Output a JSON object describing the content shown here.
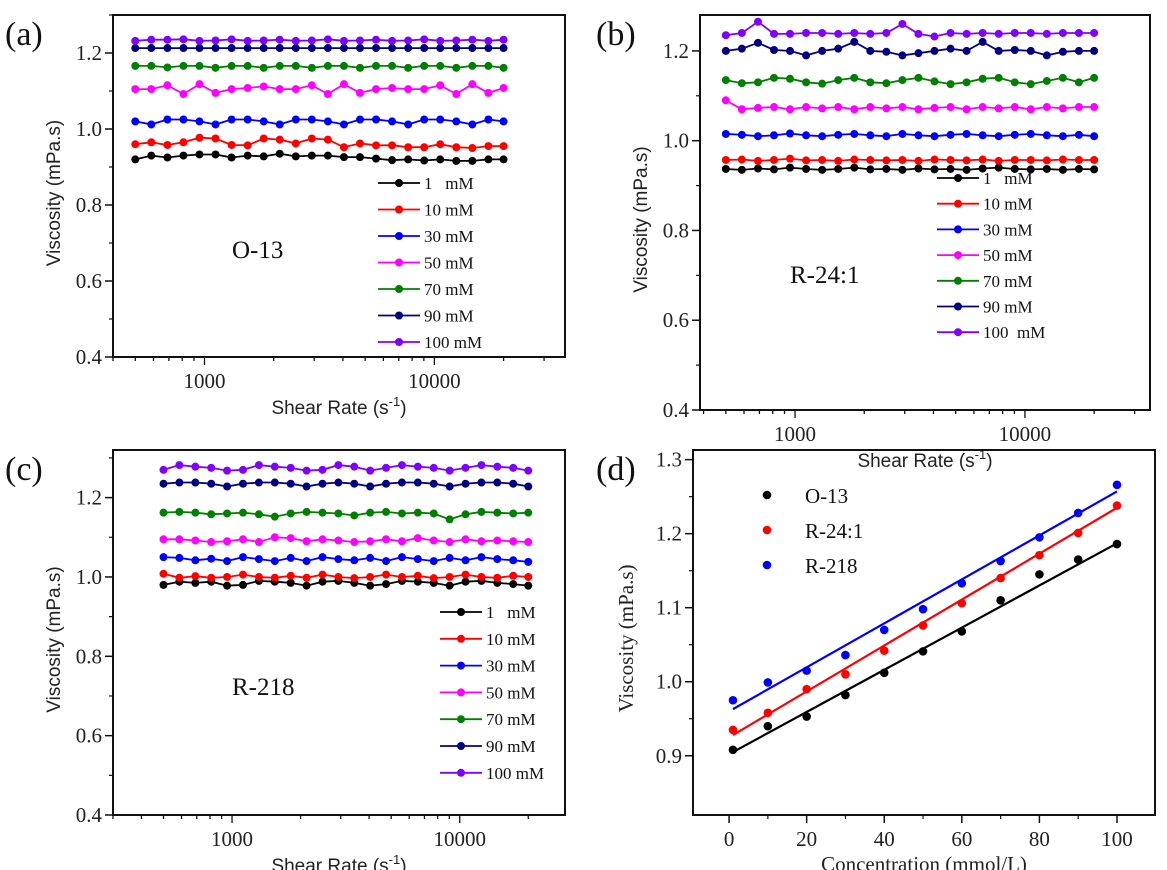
{
  "chart_data": [
    {
      "panel": "(a)",
      "type": "line",
      "annotation": "O-13",
      "xscale": "log",
      "xlim": [
        400,
        37000
      ],
      "ylim": [
        0.4,
        1.3
      ],
      "xticks": [
        1000,
        10000
      ],
      "xtick_labels": [
        "1000",
        "10000"
      ],
      "yticks": [
        0.4,
        0.6,
        0.8,
        1.0,
        1.2
      ],
      "ytick_labels": [
        "0.4",
        "0.6",
        "0.8",
        "1.0",
        "1.2"
      ],
      "xlabel_parts": [
        "Shear Rate (s",
        "-1",
        ")"
      ],
      "ylabel": "Viscosity (mPa.s)",
      "legend_position": "lower-right",
      "x": [
        500,
        587,
        690,
        810,
        951,
        1117,
        1312,
        1541,
        1810,
        2125,
        2496,
        2931,
        3442,
        4042,
        4747,
        5575,
        6547,
        7689,
        9030,
        10604,
        12453,
        14625,
        17175,
        20000
      ],
      "series": [
        {
          "name": "1   mM",
          "color": "#000000",
          "values": [
            0.92,
            0.93,
            0.925,
            0.93,
            0.933,
            0.933,
            0.925,
            0.93,
            0.928,
            0.935,
            0.928,
            0.93,
            0.93,
            0.926,
            0.926,
            0.922,
            0.918,
            0.92,
            0.917,
            0.92,
            0.916,
            0.916,
            0.92,
            0.92
          ]
        },
        {
          "name": "10 mM",
          "color": "#ff0000",
          "values": [
            0.96,
            0.965,
            0.958,
            0.965,
            0.977,
            0.975,
            0.958,
            0.957,
            0.975,
            0.972,
            0.962,
            0.975,
            0.972,
            0.952,
            0.962,
            0.957,
            0.957,
            0.952,
            0.952,
            0.96,
            0.952,
            0.95,
            0.955,
            0.955
          ]
        },
        {
          "name": "30 mM",
          "color": "#0000ff",
          "values": [
            1.02,
            1.012,
            1.025,
            1.025,
            1.02,
            1.012,
            1.025,
            1.025,
            1.02,
            1.012,
            1.025,
            1.025,
            1.02,
            1.012,
            1.025,
            1.025,
            1.02,
            1.012,
            1.025,
            1.025,
            1.02,
            1.012,
            1.025,
            1.02
          ]
        },
        {
          "name": "50 mM",
          "color": "#ff00ff",
          "values": [
            1.105,
            1.105,
            1.115,
            1.092,
            1.118,
            1.095,
            1.105,
            1.108,
            1.112,
            1.105,
            1.105,
            1.115,
            1.092,
            1.118,
            1.095,
            1.105,
            1.108,
            1.105,
            1.105,
            1.115,
            1.092,
            1.118,
            1.095,
            1.108
          ]
        },
        {
          "name": "70 mM",
          "color": "#008000",
          "values": [
            1.166,
            1.166,
            1.162,
            1.166,
            1.166,
            1.161,
            1.166,
            1.166,
            1.161,
            1.166,
            1.166,
            1.161,
            1.166,
            1.166,
            1.161,
            1.166,
            1.166,
            1.161,
            1.166,
            1.166,
            1.161,
            1.166,
            1.166,
            1.161
          ]
        },
        {
          "name": "90 mM",
          "color": "#000080",
          "values": [
            1.213,
            1.213,
            1.213,
            1.213,
            1.213,
            1.213,
            1.213,
            1.213,
            1.213,
            1.213,
            1.213,
            1.213,
            1.213,
            1.213,
            1.213,
            1.213,
            1.213,
            1.213,
            1.213,
            1.213,
            1.213,
            1.213,
            1.213,
            1.213
          ]
        },
        {
          "name": "100 mM",
          "color": "#8000ff",
          "values": [
            1.232,
            1.235,
            1.235,
            1.236,
            1.232,
            1.233,
            1.236,
            1.232,
            1.233,
            1.235,
            1.232,
            1.233,
            1.236,
            1.232,
            1.233,
            1.235,
            1.232,
            1.233,
            1.236,
            1.232,
            1.233,
            1.235,
            1.232,
            1.235
          ]
        }
      ]
    },
    {
      "panel": "(b)",
      "type": "line",
      "annotation": "R-24:1",
      "xscale": "log",
      "xlim": [
        386,
        35000
      ],
      "ylim": [
        0.4,
        1.28
      ],
      "xticks": [
        1000,
        10000
      ],
      "xtick_labels": [
        "1000",
        "10000"
      ],
      "yticks": [
        0.4,
        0.6,
        0.8,
        1.0,
        1.2
      ],
      "ytick_labels": [
        "0.4",
        "0.6",
        "0.8",
        "1.0",
        "1.2"
      ],
      "xlabel_parts": [
        "Shear Rate (s",
        "-1",
        ")"
      ],
      "ylabel": "Viscosity (mPa.s)",
      "legend_position": "lower-right",
      "x": [
        500,
        587,
        690,
        810,
        951,
        1117,
        1312,
        1541,
        1810,
        2125,
        2496,
        2931,
        3442,
        4042,
        4747,
        5575,
        6547,
        7689,
        9030,
        10604,
        12453,
        14625,
        17175,
        20000
      ],
      "series": [
        {
          "name": "1   mM",
          "color": "#000000",
          "values": [
            0.937,
            0.935,
            0.938,
            0.936,
            0.94,
            0.937,
            0.935,
            0.937,
            0.94,
            0.936,
            0.937,
            0.935,
            0.938,
            0.936,
            0.937,
            0.935,
            0.938,
            0.94,
            0.937,
            0.936,
            0.937,
            0.935,
            0.937,
            0.936
          ]
        },
        {
          "name": "10 mM",
          "color": "#ff0000",
          "values": [
            0.957,
            0.958,
            0.955,
            0.957,
            0.96,
            0.956,
            0.957,
            0.955,
            0.958,
            0.957,
            0.956,
            0.957,
            0.955,
            0.958,
            0.957,
            0.956,
            0.958,
            0.955,
            0.957,
            0.957,
            0.956,
            0.958,
            0.957,
            0.957
          ]
        },
        {
          "name": "30 mM",
          "color": "#0000ff",
          "values": [
            1.015,
            1.013,
            1.01,
            1.012,
            1.016,
            1.012,
            1.01,
            1.013,
            1.015,
            1.012,
            1.01,
            1.015,
            1.012,
            1.01,
            1.013,
            1.015,
            1.012,
            1.01,
            1.013,
            1.015,
            1.012,
            1.01,
            1.013,
            1.01
          ]
        },
        {
          "name": "50 mM",
          "color": "#ff00ff",
          "values": [
            1.09,
            1.07,
            1.073,
            1.075,
            1.07,
            1.075,
            1.072,
            1.075,
            1.07,
            1.075,
            1.072,
            1.075,
            1.07,
            1.073,
            1.075,
            1.07,
            1.075,
            1.072,
            1.075,
            1.07,
            1.075,
            1.072,
            1.075,
            1.075
          ]
        },
        {
          "name": "70 mM",
          "color": "#008000",
          "values": [
            1.135,
            1.128,
            1.13,
            1.14,
            1.138,
            1.13,
            1.127,
            1.135,
            1.14,
            1.13,
            1.128,
            1.135,
            1.14,
            1.132,
            1.126,
            1.13,
            1.138,
            1.14,
            1.13,
            1.126,
            1.133,
            1.14,
            1.13,
            1.14
          ]
        },
        {
          "name": "90 mM",
          "color": "#000080",
          "values": [
            1.2,
            1.205,
            1.218,
            1.202,
            1.2,
            1.19,
            1.2,
            1.205,
            1.22,
            1.2,
            1.198,
            1.19,
            1.195,
            1.2,
            1.205,
            1.2,
            1.22,
            1.2,
            1.202,
            1.2,
            1.19,
            1.198,
            1.2,
            1.2
          ]
        },
        {
          "name": "100  mM",
          "color": "#8000ff",
          "values": [
            1.235,
            1.24,
            1.265,
            1.238,
            1.238,
            1.24,
            1.24,
            1.238,
            1.24,
            1.238,
            1.24,
            1.26,
            1.238,
            1.232,
            1.24,
            1.238,
            1.24,
            1.238,
            1.24,
            1.24,
            1.238,
            1.24,
            1.24,
            1.24
          ]
        }
      ]
    },
    {
      "panel": "(c)",
      "type": "line",
      "annotation": "R-218",
      "xscale": "log",
      "xlim": [
        300,
        29000
      ],
      "ylim": [
        0.4,
        1.32
      ],
      "xticks": [
        1000,
        10000
      ],
      "xtick_labels": [
        "1000",
        "10000"
      ],
      "yticks": [
        0.4,
        0.6,
        0.8,
        1.0,
        1.2
      ],
      "ytick_labels": [
        "0.4",
        "0.6",
        "0.8",
        "1.0",
        "1.2"
      ],
      "xlabel_parts": [
        "Shear Rate (s",
        "-1",
        ")"
      ],
      "ylabel": "Viscosity (mPa.s)",
      "legend_position": "lower-right",
      "x": [
        500,
        587,
        690,
        810,
        951,
        1117,
        1312,
        1541,
        1810,
        2125,
        2496,
        2931,
        3442,
        4042,
        4747,
        5575,
        6547,
        7689,
        9030,
        10604,
        12453,
        14625,
        17175,
        20000
      ],
      "series": [
        {
          "name": "1   mM",
          "color": "#000000",
          "values": [
            0.98,
            0.988,
            0.985,
            0.988,
            0.978,
            0.98,
            0.99,
            0.988,
            0.985,
            0.978,
            0.988,
            0.99,
            0.985,
            0.978,
            0.982,
            0.99,
            0.988,
            0.985,
            0.978,
            0.988,
            0.99,
            0.985,
            0.982,
            0.978
          ]
        },
        {
          "name": "10 mM",
          "color": "#ff0000",
          "values": [
            1.008,
            0.998,
            1.002,
            0.998,
            1.0,
            1.006,
            1.0,
            0.998,
            1.003,
            0.998,
            1.006,
            1.0,
            0.997,
            1.0,
            1.006,
            1.0,
            1.003,
            0.997,
            1.0,
            1.006,
            1.0,
            0.998,
            1.003,
            1.0
          ]
        },
        {
          "name": "30 mM",
          "color": "#0000ff",
          "values": [
            1.05,
            1.048,
            1.042,
            1.046,
            1.04,
            1.05,
            1.045,
            1.04,
            1.048,
            1.04,
            1.05,
            1.045,
            1.042,
            1.048,
            1.04,
            1.05,
            1.045,
            1.04,
            1.048,
            1.042,
            1.05,
            1.045,
            1.042,
            1.038
          ]
        },
        {
          "name": "50 mM",
          "color": "#ff00ff",
          "values": [
            1.095,
            1.095,
            1.092,
            1.088,
            1.09,
            1.095,
            1.088,
            1.1,
            1.098,
            1.09,
            1.095,
            1.092,
            1.088,
            1.09,
            1.095,
            1.09,
            1.098,
            1.092,
            1.088,
            1.095,
            1.09,
            1.092,
            1.09,
            1.088
          ]
        },
        {
          "name": "70 mM",
          "color": "#008000",
          "values": [
            1.162,
            1.164,
            1.162,
            1.158,
            1.16,
            1.162,
            1.158,
            1.152,
            1.16,
            1.164,
            1.162,
            1.16,
            1.155,
            1.162,
            1.164,
            1.16,
            1.162,
            1.16,
            1.145,
            1.158,
            1.164,
            1.162,
            1.16,
            1.162
          ]
        },
        {
          "name": "90 mM",
          "color": "#000080",
          "values": [
            1.235,
            1.238,
            1.238,
            1.235,
            1.228,
            1.235,
            1.238,
            1.238,
            1.235,
            1.228,
            1.235,
            1.238,
            1.235,
            1.228,
            1.235,
            1.238,
            1.238,
            1.235,
            1.228,
            1.235,
            1.238,
            1.238,
            1.235,
            1.228
          ]
        },
        {
          "name": "100 mM",
          "color": "#8000ff",
          "values": [
            1.27,
            1.282,
            1.278,
            1.275,
            1.268,
            1.27,
            1.282,
            1.278,
            1.275,
            1.268,
            1.27,
            1.282,
            1.278,
            1.268,
            1.275,
            1.282,
            1.278,
            1.275,
            1.268,
            1.275,
            1.282,
            1.278,
            1.275,
            1.268
          ]
        }
      ]
    },
    {
      "panel": "(d)",
      "type": "scatter",
      "xscale": "linear",
      "xlim": [
        -9.3,
        109.8
      ],
      "ylim": [
        0.82,
        1.313
      ],
      "xticks": [
        0,
        20,
        40,
        60,
        80,
        100
      ],
      "xtick_labels": [
        "0",
        "20",
        "40",
        "60",
        "80",
        "100"
      ],
      "yticks": [
        0.9,
        1.0,
        1.1,
        1.2,
        1.3
      ],
      "ytick_labels": [
        "0.9",
        "1.0",
        "1.1",
        "1.2",
        "1.3"
      ],
      "xlabel": "Concentration (mmol/L)",
      "ylabel": "Viscosity (mPa.s)",
      "legend_position": "top-left",
      "x": [
        1,
        10,
        20,
        30,
        40,
        50,
        60,
        70,
        80,
        90,
        100
      ],
      "series": [
        {
          "name": "O-13",
          "color": "#000000",
          "values": [
            0.908,
            0.94,
            0.953,
            0.982,
            1.012,
            1.041,
            1.068,
            1.11,
            1.145,
            1.165,
            1.186
          ],
          "fit": [
            0.905,
            1.187
          ]
        },
        {
          "name": "R-24:1",
          "color": "#ff0000",
          "values": [
            0.935,
            0.958,
            0.99,
            1.01,
            1.042,
            1.076,
            1.106,
            1.14,
            1.171,
            1.201,
            1.238
          ],
          "fit": [
            0.928,
            1.235
          ]
        },
        {
          "name": "R-218",
          "color": "#0000ff",
          "values": [
            0.975,
            0.999,
            1.015,
            1.036,
            1.07,
            1.098,
            1.133,
            1.163,
            1.195,
            1.228,
            1.266
          ],
          "fit": [
            0.963,
            1.257
          ]
        }
      ]
    }
  ]
}
